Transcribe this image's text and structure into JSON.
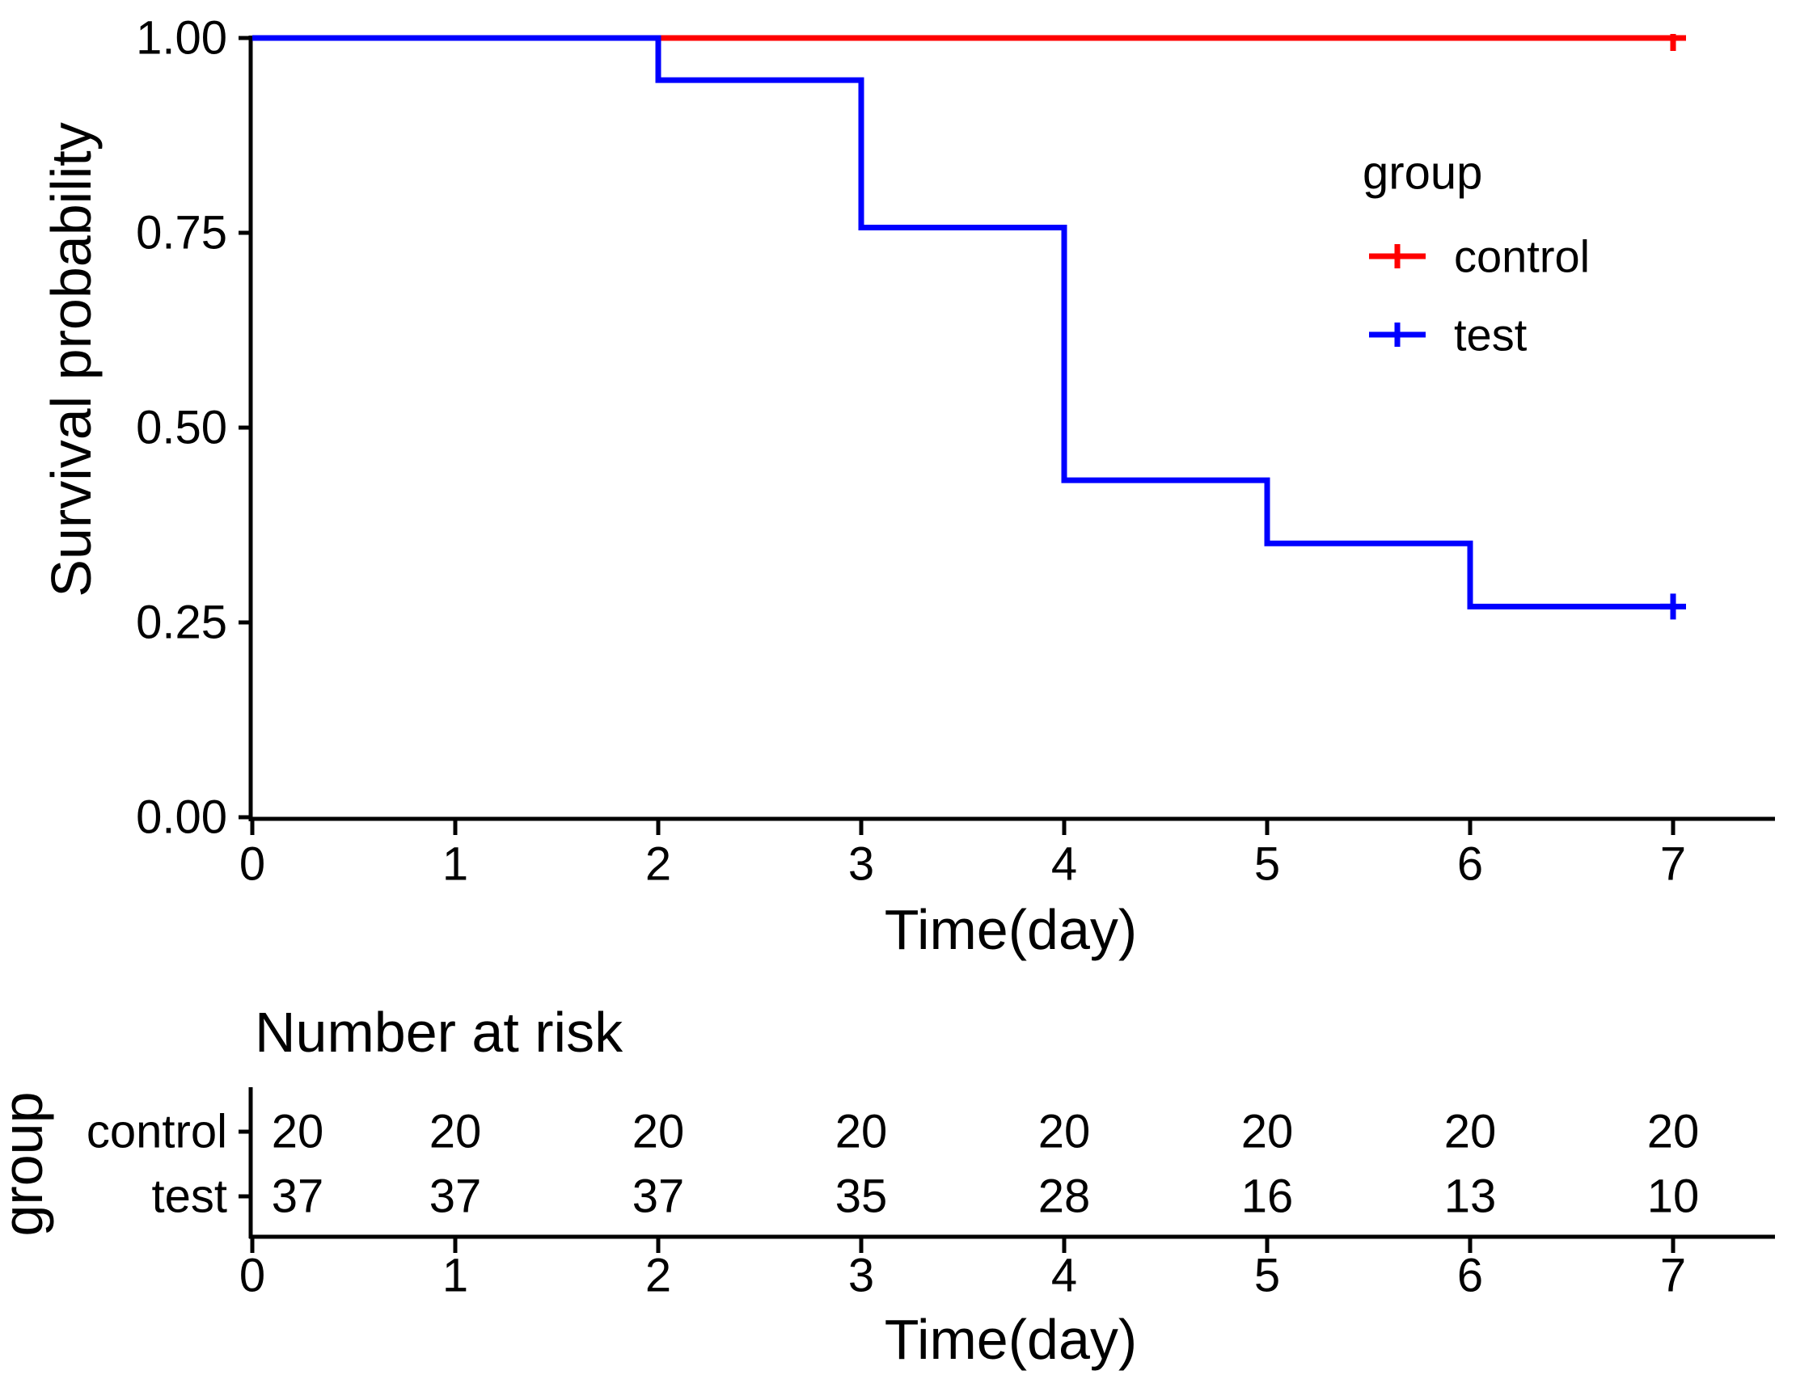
{
  "figure": {
    "background": "#ffffff",
    "axis_color": "#000000",
    "text_color": "#000000"
  },
  "chart_data": {
    "type": "line",
    "subtype": "kaplan_meier_step_curve",
    "title": "",
    "xlabel": "Time(day)",
    "ylabel": "Survival probability",
    "xlim": [
      0,
      7.05
    ],
    "ylim": [
      0,
      1
    ],
    "grid": false,
    "x_ticks": {
      "values": [
        0,
        1,
        2,
        3,
        4,
        5,
        6,
        7
      ],
      "labels": [
        "0",
        "1",
        "2",
        "3",
        "4",
        "5",
        "6",
        "7"
      ]
    },
    "y_ticks": {
      "values": [
        1.0,
        0.75,
        0.5,
        0.25,
        0.0
      ],
      "labels": [
        "1.00",
        "0.75",
        "0.50",
        "0.25",
        "0.00"
      ]
    },
    "legend": {
      "title": "group",
      "position": "inside_top_right",
      "items": [
        {
          "label": "control",
          "color": "#ff0000",
          "marker": "plus-on-line"
        },
        {
          "label": "test",
          "color": "#0000ff",
          "marker": "plus-on-line"
        }
      ]
    },
    "series": [
      {
        "name": "control",
        "color": "#ff0000",
        "points": [
          {
            "t": 0,
            "s": 1.0
          },
          {
            "t": 7,
            "s": 1.0
          }
        ],
        "censor_marks": [
          {
            "t": 7,
            "s": 1.0
          }
        ]
      },
      {
        "name": "test",
        "color": "#0000ff",
        "points": [
          {
            "t": 0,
            "s": 1.0
          },
          {
            "t": 2,
            "s": 0.9459
          },
          {
            "t": 3,
            "s": 0.7568
          },
          {
            "t": 4,
            "s": 0.4324
          },
          {
            "t": 5,
            "s": 0.3514
          },
          {
            "t": 6,
            "s": 0.2703
          },
          {
            "t": 7,
            "s": 0.2703
          }
        ],
        "censor_marks": [
          {
            "t": 7,
            "s": 0.2703
          }
        ]
      }
    ],
    "risk_table": {
      "title": "Number at risk",
      "ylabel": "group",
      "xlabel": "Time(day)",
      "times": [
        0,
        1,
        2,
        3,
        4,
        5,
        6,
        7
      ],
      "time_labels": [
        "0",
        "1",
        "2",
        "3",
        "4",
        "5",
        "6",
        "7"
      ],
      "rows": [
        {
          "label": "control",
          "color": "#ff0000",
          "counts": [
            20,
            20,
            20,
            20,
            20,
            20,
            20,
            20
          ]
        },
        {
          "label": "test",
          "color": "#0000ff",
          "counts": [
            37,
            37,
            37,
            35,
            28,
            16,
            13,
            10
          ]
        }
      ]
    }
  }
}
